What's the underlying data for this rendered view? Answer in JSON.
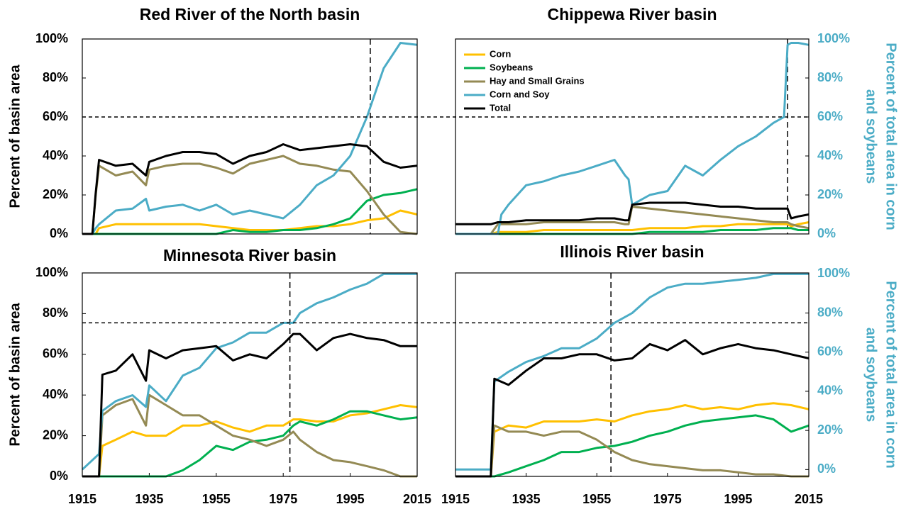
{
  "chart_data": [
    {
      "type": "line",
      "title": "Red River of the North basin",
      "ylabel": "Percent of basin area",
      "x": [
        1915,
        1918,
        1919,
        1920,
        1925,
        1930,
        1934,
        1935,
        1940,
        1945,
        1950,
        1955,
        1960,
        1965,
        1970,
        1975,
        1980,
        1985,
        1990,
        1995,
        2000,
        2005,
        2010,
        2015
      ],
      "xlim": [
        1915,
        2015
      ],
      "ylim": [
        0,
        100
      ],
      "y2lim": [
        0,
        100
      ],
      "yticks": [
        {
          "value": 0,
          "label": "0%"
        },
        {
          "value": 20,
          "label": "20%"
        },
        {
          "value": 40,
          "label": "40%"
        },
        {
          "value": 60,
          "label": "60%"
        },
        {
          "value": 80,
          "label": "80%"
        },
        {
          "value": 100,
          "label": "100%"
        }
      ],
      "crossing_year": 2001,
      "series": [
        {
          "name": "Corn",
          "color": "#ffc000",
          "values": [
            0,
            0,
            0,
            3,
            5,
            5,
            5,
            5,
            5,
            5,
            5,
            4,
            3,
            2,
            2,
            2,
            3,
            4,
            4,
            5,
            7,
            8,
            12,
            10
          ]
        },
        {
          "name": "Soybeans",
          "color": "#00b050",
          "values": [
            0,
            0,
            0,
            0,
            0,
            0,
            0,
            0,
            0,
            0,
            0,
            0,
            2,
            1,
            1,
            2,
            2,
            3,
            5,
            8,
            17,
            20,
            21,
            23
          ]
        },
        {
          "name": "Hay and Small Grains",
          "color": "#948a54",
          "values": [
            0,
            0,
            20,
            35,
            30,
            32,
            25,
            33,
            35,
            36,
            36,
            34,
            31,
            36,
            38,
            40,
            36,
            35,
            33,
            32,
            22,
            10,
            1,
            0
          ]
        },
        {
          "name": "Corn and Soy",
          "color": "#4bacc6",
          "axis": "y2",
          "values": [
            0,
            0,
            3,
            5,
            12,
            13,
            18,
            12,
            14,
            15,
            12,
            15,
            10,
            12,
            10,
            8,
            15,
            25,
            30,
            40,
            60,
            85,
            98,
            97
          ]
        },
        {
          "name": "Total",
          "color": "#000000",
          "values": [
            0,
            0,
            21,
            38,
            35,
            36,
            30,
            37,
            40,
            42,
            42,
            41,
            36,
            40,
            42,
            46,
            43,
            44,
            45,
            46,
            45,
            37,
            34,
            35
          ]
        }
      ]
    },
    {
      "type": "line",
      "title": "Chippewa River basin",
      "y2label": [
        "Percent of total area in corn",
        "and soybeans"
      ],
      "legend": "upper left",
      "x": [
        1915,
        1920,
        1925,
        1927,
        1928,
        1930,
        1935,
        1940,
        1945,
        1950,
        1955,
        1960,
        1963,
        1964,
        1965,
        1970,
        1975,
        1980,
        1985,
        1990,
        1995,
        2000,
        2005,
        2008,
        2009,
        2010,
        2012,
        2015
      ],
      "xlim": [
        1915,
        2015
      ],
      "ylim": [
        0,
        100
      ],
      "y2lim": [
        0,
        100
      ],
      "y2ticks": [
        {
          "value": 0,
          "label": "0%"
        },
        {
          "value": 20,
          "label": "20%"
        },
        {
          "value": 40,
          "label": "40%"
        },
        {
          "value": 60,
          "label": "60%"
        },
        {
          "value": 80,
          "label": "80%"
        },
        {
          "value": 100,
          "label": "100%"
        }
      ],
      "crossing_year": 2009,
      "crossing_share": 60,
      "series": [
        {
          "name": "Corn",
          "color": "#ffc000",
          "values": [
            0,
            0,
            0,
            1,
            1,
            1,
            1,
            2,
            2,
            2,
            2,
            2,
            2,
            2,
            2,
            3,
            3,
            3,
            4,
            4,
            5,
            5,
            5,
            5,
            5,
            4,
            5,
            6
          ]
        },
        {
          "name": "Soybeans",
          "color": "#00b050",
          "values": [
            0,
            0,
            0,
            0,
            0,
            0,
            0,
            0,
            0,
            0,
            0,
            0,
            0,
            0,
            0,
            1,
            1,
            1,
            1,
            2,
            2,
            2,
            3,
            3,
            3,
            3,
            2,
            2
          ]
        },
        {
          "name": "Hay and Small Grains",
          "color": "#948a54",
          "values": [
            0,
            0,
            0,
            5,
            5,
            5,
            5,
            6,
            6,
            6,
            6,
            6,
            5,
            5,
            14,
            13,
            12,
            11,
            10,
            9,
            8,
            7,
            6,
            6,
            6,
            5,
            4,
            3
          ]
        },
        {
          "name": "Corn and Soy",
          "color": "#4bacc6",
          "axis": "y2",
          "values": [
            0,
            0,
            0,
            0,
            10,
            15,
            25,
            27,
            30,
            32,
            35,
            38,
            30,
            28,
            15,
            20,
            22,
            35,
            30,
            38,
            45,
            50,
            57,
            60,
            97,
            98,
            98,
            97
          ]
        },
        {
          "name": "Total",
          "color": "#000000",
          "values": [
            5,
            5,
            5,
            6,
            6,
            6,
            7,
            7,
            7,
            7,
            8,
            8,
            7,
            7,
            15,
            16,
            16,
            16,
            15,
            14,
            14,
            13,
            13,
            13,
            13,
            8,
            9,
            10
          ]
        }
      ]
    },
    {
      "type": "line",
      "title": "Minnesota River basin",
      "ylabel": "Percent of basin area",
      "x": [
        1915,
        1920,
        1921,
        1925,
        1930,
        1934,
        1935,
        1940,
        1945,
        1950,
        1955,
        1960,
        1965,
        1970,
        1975,
        1978,
        1980,
        1985,
        1990,
        1995,
        2000,
        2005,
        2010,
        2015
      ],
      "xlim": [
        1915,
        2015
      ],
      "ylim": [
        0,
        100
      ],
      "y2lim": [
        -3.5,
        100.5
      ],
      "xticks": [
        1915,
        1935,
        1955,
        1975,
        1995,
        2015
      ],
      "yticks": [
        {
          "value": 0,
          "label": "0%"
        },
        {
          "value": 20,
          "label": "20%"
        },
        {
          "value": 40,
          "label": "40%"
        },
        {
          "value": 60,
          "label": "60%"
        },
        {
          "value": 80,
          "label": "80%"
        },
        {
          "value": 100,
          "label": "100%"
        }
      ],
      "crossing_year": 1977,
      "series": [
        {
          "name": "Corn",
          "color": "#ffc000",
          "values": [
            0,
            0,
            15,
            18,
            22,
            20,
            20,
            20,
            25,
            25,
            27,
            24,
            22,
            25,
            25,
            28,
            28,
            27,
            27,
            30,
            31,
            33,
            35,
            34
          ]
        },
        {
          "name": "Soybeans",
          "color": "#00b050",
          "values": [
            0,
            0,
            0,
            0,
            0,
            0,
            0,
            0,
            3,
            8,
            15,
            13,
            17,
            18,
            20,
            25,
            27,
            25,
            28,
            32,
            32,
            30,
            28,
            29
          ]
        },
        {
          "name": "Hay and Small Grains",
          "color": "#948a54",
          "values": [
            0,
            0,
            30,
            35,
            38,
            25,
            40,
            35,
            30,
            30,
            25,
            20,
            18,
            15,
            18,
            22,
            18,
            12,
            8,
            7,
            5,
            3,
            0,
            0
          ]
        },
        {
          "name": "Corn and Soy",
          "color": "#4bacc6",
          "axis": "y2",
          "values": [
            0,
            8,
            30,
            35,
            38,
            32,
            43,
            35,
            48,
            52,
            62,
            65,
            70,
            70,
            75,
            75,
            80,
            85,
            88,
            92,
            95,
            100,
            100,
            100
          ]
        },
        {
          "name": "Total",
          "color": "#000000",
          "values": [
            0,
            0,
            50,
            52,
            60,
            47,
            62,
            58,
            62,
            63,
            64,
            57,
            60,
            58,
            65,
            70,
            70,
            62,
            68,
            70,
            68,
            67,
            64,
            64
          ]
        }
      ]
    },
    {
      "type": "line",
      "title": "Illinois River basin",
      "y2label": [
        "Percent of total area in corn",
        "and soybeans"
      ],
      "x": [
        1915,
        1925,
        1926,
        1930,
        1935,
        1940,
        1945,
        1950,
        1955,
        1960,
        1965,
        1970,
        1975,
        1980,
        1985,
        1990,
        1995,
        2000,
        2005,
        2010,
        2015
      ],
      "xlim": [
        1915,
        2015
      ],
      "ylim": [
        0,
        100
      ],
      "y2lim": [
        -3.5,
        100.5
      ],
      "xticks": [
        1915,
        1935,
        1955,
        1975,
        1995,
        2015
      ],
      "y2ticks": [
        {
          "value": 0,
          "label": "0%"
        },
        {
          "value": 20,
          "label": "20%"
        },
        {
          "value": 40,
          "label": "40%"
        },
        {
          "value": 60,
          "label": "60%"
        },
        {
          "value": 80,
          "label": "80%"
        },
        {
          "value": 100,
          "label": "100%"
        }
      ],
      "crossing_year": 1959,
      "crossing_share": 75,
      "series": [
        {
          "name": "Corn",
          "color": "#ffc000",
          "values": [
            0,
            0,
            22,
            25,
            24,
            27,
            27,
            27,
            28,
            27,
            30,
            32,
            33,
            35,
            33,
            34,
            33,
            35,
            36,
            35,
            33
          ]
        },
        {
          "name": "Soybeans",
          "color": "#00b050",
          "values": [
            0,
            0,
            0,
            2,
            5,
            8,
            12,
            12,
            14,
            15,
            17,
            20,
            22,
            25,
            27,
            28,
            29,
            30,
            28,
            22,
            25
          ]
        },
        {
          "name": "Hay and Small Grains",
          "color": "#948a54",
          "values": [
            0,
            0,
            25,
            22,
            22,
            20,
            22,
            22,
            18,
            12,
            8,
            6,
            5,
            4,
            3,
            3,
            2,
            1,
            1,
            0,
            0
          ]
        },
        {
          "name": "Corn and Soy",
          "color": "#4bacc6",
          "axis": "y2",
          "values": [
            0,
            0,
            45,
            50,
            55,
            58,
            62,
            62,
            67,
            75,
            80,
            88,
            93,
            95,
            95,
            96,
            97,
            98,
            100,
            100,
            100
          ]
        },
        {
          "name": "Total",
          "color": "#000000",
          "values": [
            0,
            0,
            48,
            45,
            52,
            58,
            58,
            60,
            60,
            57,
            58,
            65,
            62,
            67,
            60,
            63,
            65,
            63,
            62,
            60,
            58
          ]
        }
      ]
    }
  ]
}
